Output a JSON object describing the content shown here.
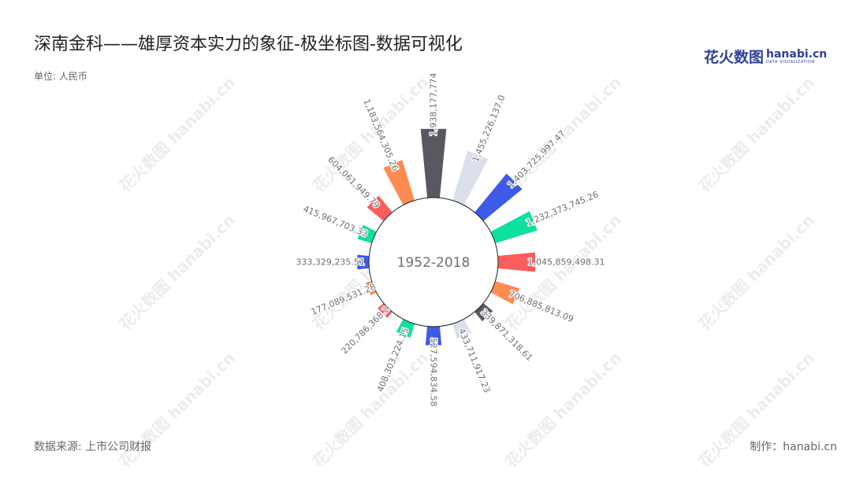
{
  "title": "深南金科——雄厚资本实力的象征-极坐标图-数据可视化",
  "unit": "单位: 人民币",
  "source": "数据来源: 上市公司财报",
  "maker": "制作：hanabi.cn",
  "logo": {
    "cn": "花火数图",
    "en": "hanabi.cn",
    "sub": "DATA VISUALIZATION"
  },
  "watermark": {
    "cn": "花火数图",
    "en": "hanabi.cn"
  },
  "chart_data": {
    "type": "bar",
    "polar": true,
    "center_label": "1952-2018",
    "categories": [
      "",
      "",
      "",
      "",
      "",
      "",
      "",
      "",
      "",
      "",
      "",
      "",
      "",
      "",
      "",
      ""
    ],
    "values": [
      1938177774,
      1455226137,
      1403725997.47,
      1232373745.26,
      1045859498.31,
      706885813.09,
      339871318.61,
      433711917.23,
      527594834.58,
      408303224.15,
      220786368.2,
      177089531.28,
      333329235.51,
      415967703.33,
      604061949.79,
      1183564305.26
    ],
    "labels": [
      "1,938,177,774",
      "1,455,226,137.0",
      "1,403,725,997.47",
      "1,232,373,745.26",
      "1,045,859,498.31",
      "706,885,813.09",
      "339,871,318.61",
      "433,711,917.23",
      "527,594,834.58",
      "408,303,224.15",
      "220,786,368.2",
      "177,089,531.28",
      "333,329,235.51",
      "415,967,703.33",
      "604,061,949.79",
      "1,183,564,305.26"
    ],
    "colors": [
      "#575860",
      "#dadfea",
      "#3d5be8",
      "#0ee0a0",
      "#fd5c5c",
      "#fe8c50",
      "#575860",
      "#dadfea",
      "#3d5be8",
      "#0ee0a0",
      "#fd5c5c",
      "#fe8c50",
      "#3d5be8",
      "#0ee0a0",
      "#fd5c5c",
      "#fe8c50"
    ]
  }
}
